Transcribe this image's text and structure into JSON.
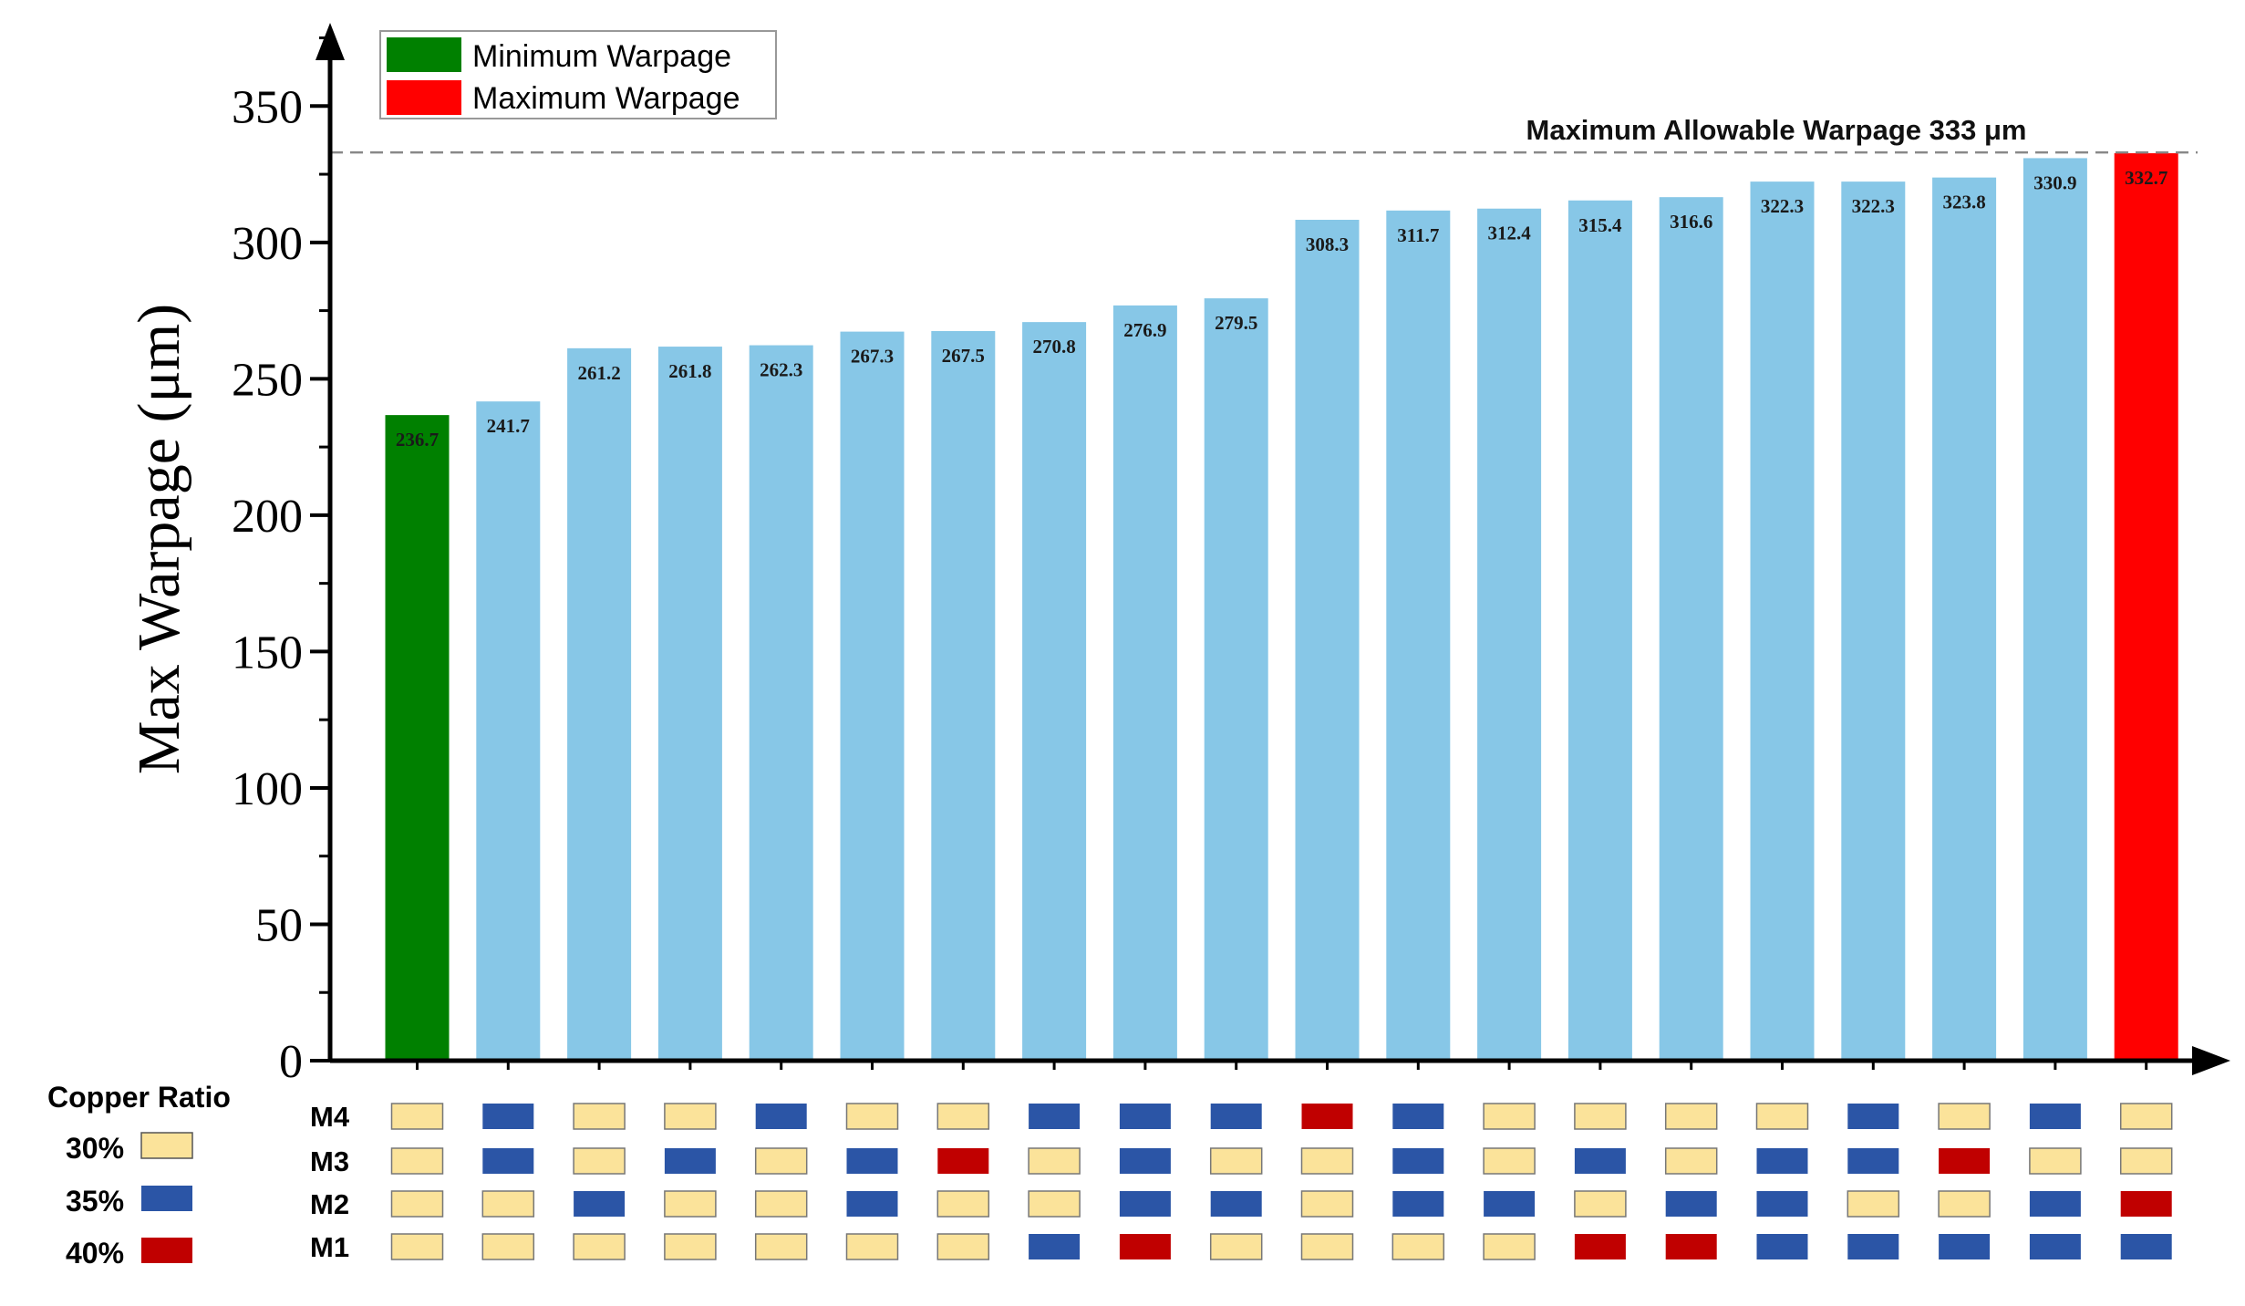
{
  "chart_data": {
    "type": "bar",
    "ylabel": "Max Warpage (μm)",
    "xlabel": "",
    "ylim": [
      0,
      375
    ],
    "yticks": [
      0,
      50,
      100,
      150,
      200,
      250,
      300,
      350
    ],
    "values": [
      236.7,
      241.7,
      261.2,
      261.8,
      262.3,
      267.3,
      267.5,
      270.8,
      276.9,
      279.5,
      308.3,
      311.7,
      312.4,
      315.4,
      316.6,
      322.3,
      322.3,
      323.8,
      330.9,
      332.7
    ],
    "value_labels": [
      "236.7",
      "241.7",
      "261.2",
      "261.8",
      "262.3",
      "267.3",
      "267.5",
      "270.8",
      "276.9",
      "279.5",
      "308.3",
      "311.7",
      "312.4",
      "315.4",
      "316.6",
      "322.3",
      "322.3",
      "323.8",
      "330.9",
      "332.7"
    ],
    "bar_categories": [
      "min",
      "normal",
      "normal",
      "normal",
      "normal",
      "normal",
      "normal",
      "normal",
      "normal",
      "normal",
      "normal",
      "normal",
      "normal",
      "normal",
      "normal",
      "normal",
      "normal",
      "normal",
      "normal",
      "max"
    ],
    "reference_line": {
      "value": 333,
      "label": "Maximum Allowable Warpage 333 μm"
    },
    "legend": [
      {
        "name": "Minimum Warpage",
        "color": "#008000"
      },
      {
        "name": "Maximum Warpage",
        "color": "#ff0000"
      }
    ],
    "copper_ratio": {
      "title": "Copper Ratio",
      "levels": [
        {
          "label": "30%",
          "color": "#fbe39a"
        },
        {
          "label": "35%",
          "color": "#2b55a6"
        },
        {
          "label": "40%",
          "color": "#c00000"
        }
      ],
      "layers": [
        "M4",
        "M3",
        "M2",
        "M1"
      ],
      "matrix": {
        "M4": [
          "30%",
          "35%",
          "30%",
          "30%",
          "35%",
          "30%",
          "30%",
          "35%",
          "35%",
          "35%",
          "40%",
          "35%",
          "30%",
          "30%",
          "30%",
          "30%",
          "35%",
          "30%",
          "35%",
          "30%"
        ],
        "M3": [
          "30%",
          "35%",
          "30%",
          "35%",
          "30%",
          "35%",
          "40%",
          "30%",
          "35%",
          "30%",
          "30%",
          "35%",
          "30%",
          "35%",
          "30%",
          "35%",
          "35%",
          "40%",
          "30%",
          "30%"
        ],
        "M2": [
          "30%",
          "30%",
          "35%",
          "30%",
          "30%",
          "35%",
          "30%",
          "30%",
          "35%",
          "35%",
          "30%",
          "35%",
          "35%",
          "30%",
          "35%",
          "35%",
          "30%",
          "30%",
          "35%",
          "40%"
        ],
        "M1": [
          "30%",
          "30%",
          "30%",
          "30%",
          "30%",
          "30%",
          "30%",
          "35%",
          "40%",
          "30%",
          "30%",
          "30%",
          "30%",
          "40%",
          "40%",
          "35%",
          "35%",
          "35%",
          "35%",
          "35%"
        ]
      }
    }
  },
  "colors": {
    "bar_normal": "#87c7e7",
    "bar_min": "#008000",
    "bar_max": "#ff0000",
    "axis": "#000000",
    "reference_line": "#888888"
  }
}
